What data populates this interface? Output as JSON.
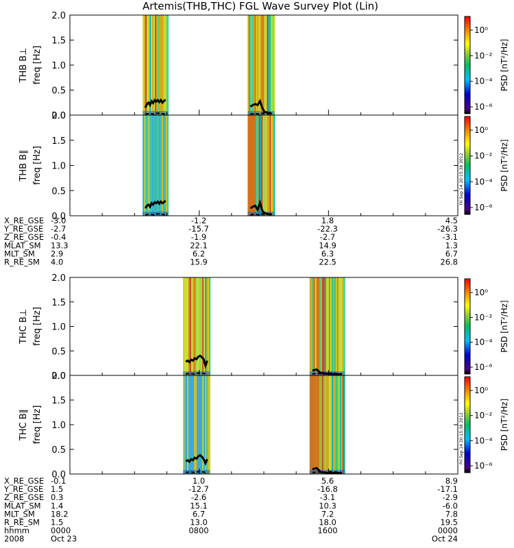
{
  "title": "Artemis(THB,THC) FGL Wave Survey Plot (Lin)",
  "colors": {
    "axis": "#000000",
    "line": "#000000",
    "background": "#ffffff"
  },
  "colorbar": {
    "label": "PSD [nT²/Hz]",
    "ticks": [
      "10⁰",
      "10⁻²",
      "10⁻⁴",
      "10⁻⁶"
    ],
    "stamp": "Fri Sep 14 20:15:38 2012"
  },
  "chart_data": [
    {
      "type": "heatmap",
      "name": "THB B⊥",
      "ylabel": "THB B⊥",
      "ysublabel": "freq [Hz]",
      "ylim": [
        0,
        2.0
      ],
      "yticks": [
        "0.0",
        "0.5",
        "1.0",
        "1.5",
        "2.0"
      ],
      "data_intervals_hhmm": [
        [
          "0430",
          "0605"
        ],
        [
          "1100",
          "1240"
        ]
      ],
      "cutoff_solid": [
        0.15,
        0.22,
        0.25,
        0.2,
        0.28,
        0.24,
        0.3,
        0.27,
        0.3,
        0.26,
        0.3,
        0.25,
        0.28,
        0.31
      ],
      "cutoff_solid_b": [
        0.17,
        0.2,
        0.22,
        0.2,
        0.28,
        0.14,
        0.06,
        0.05,
        0.04,
        0.03
      ],
      "cutoff_dashed": [
        0.02,
        0.03,
        0.02,
        0.04,
        0.03,
        0.02
      ]
    },
    {
      "type": "heatmap",
      "name": "THB B∥",
      "ylabel": "THB B∥",
      "ysublabel": "freq [Hz]",
      "ylim": [
        0,
        2.0
      ],
      "yticks": [
        "0.0",
        "0.5",
        "1.0",
        "1.5",
        "2.0"
      ],
      "data_intervals_hhmm": [
        [
          "0430",
          "0605"
        ],
        [
          "1100",
          "1240"
        ]
      ],
      "cutoff_solid": [
        0.15,
        0.2,
        0.22,
        0.18,
        0.25,
        0.22,
        0.27,
        0.25,
        0.28,
        0.24,
        0.28,
        0.25,
        0.27,
        0.3
      ],
      "cutoff_solid_b": [
        0.15,
        0.18,
        0.2,
        0.12,
        0.26,
        0.1,
        0.05,
        0.04,
        0.03,
        0.03
      ],
      "cutoff_dashed": [
        0.02,
        0.03,
        0.02,
        0.04,
        0.03,
        0.02
      ]
    },
    {
      "type": "heatmap",
      "name": "THC B⊥",
      "ylabel": "THC B⊥",
      "ysublabel": "freq [Hz]",
      "ylim": [
        0,
        2.0
      ],
      "yticks": [
        "0.0",
        "0.5",
        "1.0",
        "1.5",
        "2.0"
      ],
      "data_intervals_hhmm": [
        [
          "0700",
          "0840"
        ],
        [
          "1450",
          "1700"
        ]
      ],
      "cutoff_solid": [
        0.28,
        0.3,
        0.27,
        0.32,
        0.3,
        0.35,
        0.33,
        0.38,
        0.4,
        0.37,
        0.33,
        0.2,
        0.3
      ],
      "cutoff_solid_b": [
        0.1,
        0.12,
        0.05,
        0.04,
        0.03,
        0.03,
        0.02,
        0.03
      ],
      "cutoff_dashed": [
        0.03,
        0.04,
        0.03,
        0.05,
        0.04,
        0.03
      ]
    },
    {
      "type": "heatmap",
      "name": "THC B∥",
      "ylabel": "THC B∥",
      "ysublabel": "freq [Hz]",
      "ylim": [
        0,
        2.0
      ],
      "yticks": [
        "0.0",
        "0.5",
        "1.0",
        "1.5",
        "2.0"
      ],
      "data_intervals_hhmm": [
        [
          "0700",
          "0840"
        ],
        [
          "1450",
          "1700"
        ]
      ],
      "cutoff_solid": [
        0.26,
        0.28,
        0.25,
        0.3,
        0.28,
        0.33,
        0.31,
        0.36,
        0.38,
        0.35,
        0.3,
        0.22,
        0.3
      ],
      "cutoff_solid_b": [
        0.1,
        0.12,
        0.04,
        0.03,
        0.02,
        0.02,
        0.02,
        0.02
      ],
      "cutoff_dashed": [
        0.03,
        0.04,
        0.03,
        0.05,
        0.04,
        0.03
      ]
    }
  ],
  "ephemeris": [
    {
      "rows": [
        {
          "label": "X_RE_GSE",
          "values": [
            "-3.0",
            "-1.2",
            "1.8",
            "4.5"
          ]
        },
        {
          "label": "Y_RE_GSE",
          "values": [
            "-2.7",
            "-15.7",
            "-22.3",
            "-26.3"
          ]
        },
        {
          "label": "Z_RE_GSE",
          "values": [
            "-0.4",
            "-1.9",
            "-2.7",
            "-3.1"
          ]
        },
        {
          "label": "MLAT_SM",
          "values": [
            "13.3",
            "22.1",
            "14.9",
            "1.3"
          ]
        },
        {
          "label": "MLT_SM",
          "values": [
            "2.9",
            "6.2",
            "6.3",
            "6.7"
          ]
        },
        {
          "label": "R_RE_SM",
          "values": [
            "4.0",
            "15.9",
            "22.5",
            "26.8"
          ]
        }
      ]
    },
    {
      "rows": [
        {
          "label": "X_RE_GSE",
          "values": [
            "-0.1",
            "1.0",
            "5.6",
            "8.9"
          ]
        },
        {
          "label": "Y_RE_GSE",
          "values": [
            "1.5",
            "-12.7",
            "-16.8",
            "-17.1"
          ]
        },
        {
          "label": "Z_RE_GSE",
          "values": [
            "0.3",
            "-2.6",
            "-3.1",
            "-2.9"
          ]
        },
        {
          "label": "MLAT_SM",
          "values": [
            "1.4",
            "15.1",
            "10.3",
            "-6.0"
          ]
        },
        {
          "label": "MLT_SM",
          "values": [
            "18.2",
            "6.7",
            "7.2",
            "7.8"
          ]
        },
        {
          "label": "R_RE_SM",
          "values": [
            "1.5",
            "13.0",
            "18.0",
            "19.5"
          ]
        },
        {
          "label": "hhmm",
          "values": [
            "0000",
            "0800",
            "1600",
            "0000"
          ]
        },
        {
          "label": "2008",
          "values": [
            "Oct 23",
            "",
            "",
            "Oct 24"
          ]
        }
      ]
    }
  ]
}
